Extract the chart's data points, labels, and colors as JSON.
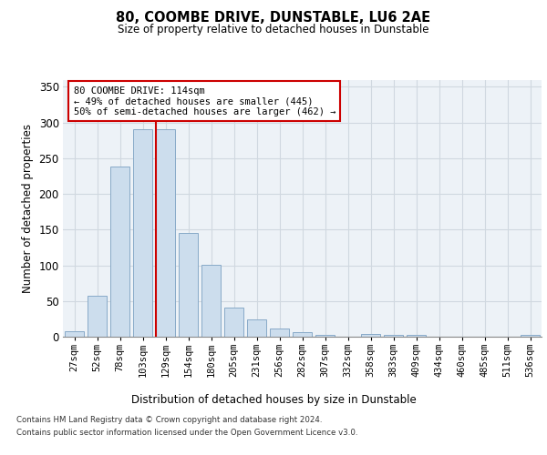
{
  "title": "80, COOMBE DRIVE, DUNSTABLE, LU6 2AE",
  "subtitle": "Size of property relative to detached houses in Dunstable",
  "xlabel": "Distribution of detached houses by size in Dunstable",
  "ylabel": "Number of detached properties",
  "bar_labels": [
    "27sqm",
    "52sqm",
    "78sqm",
    "103sqm",
    "129sqm",
    "154sqm",
    "180sqm",
    "205sqm",
    "231sqm",
    "256sqm",
    "282sqm",
    "307sqm",
    "332sqm",
    "358sqm",
    "383sqm",
    "409sqm",
    "434sqm",
    "460sqm",
    "485sqm",
    "511sqm",
    "536sqm"
  ],
  "bar_values": [
    8,
    57,
    238,
    291,
    291,
    145,
    101,
    41,
    24,
    11,
    7,
    3,
    0,
    4,
    2,
    2,
    0,
    0,
    0,
    0,
    2
  ],
  "bar_color": "#ccdded",
  "bar_edge_color": "#88aac8",
  "grid_color": "#d0d8e0",
  "background_color": "#edf2f7",
  "vline_x": 3.57,
  "vline_color": "#cc0000",
  "annotation_text": "80 COOMBE DRIVE: 114sqm\n← 49% of detached houses are smaller (445)\n50% of semi-detached houses are larger (462) →",
  "annotation_box_edge": "#cc0000",
  "footer_line1": "Contains HM Land Registry data © Crown copyright and database right 2024.",
  "footer_line2": "Contains public sector information licensed under the Open Government Licence v3.0.",
  "ylim": [
    0,
    360
  ],
  "yticks": [
    0,
    50,
    100,
    150,
    200,
    250,
    300,
    350
  ]
}
